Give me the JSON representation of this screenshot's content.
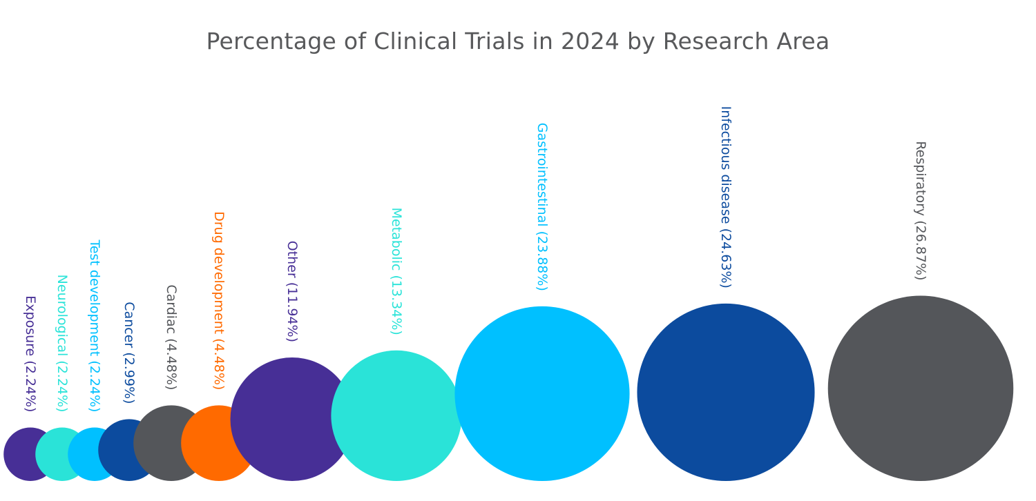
{
  "chart_data": {
    "type": "bubble",
    "title": "Percentage of Clinical Trials in 2024 by Research Area",
    "unit": "%",
    "categories": [
      {
        "name": "Exposure",
        "value": 2.24,
        "label": "Exposure (2.24%)",
        "color": "#472f96"
      },
      {
        "name": "Neurological",
        "value": 2.24,
        "label": "Neurological (2.24%)",
        "color": "#2ae3d8"
      },
      {
        "name": "Test development",
        "value": 2.24,
        "label": "Test development (2.24%)",
        "color": "#00c0ff"
      },
      {
        "name": "Cancer",
        "value": 2.99,
        "label": "Cancer (2.99%)",
        "color": "#0c4b9e"
      },
      {
        "name": "Cardiac",
        "value": 4.48,
        "label": "Cardiac (4.48%)",
        "color": "#54565a"
      },
      {
        "name": "Drug development",
        "value": 4.48,
        "label": "Drug development (4.48%)",
        "color": "#ff6a00"
      },
      {
        "name": "Other",
        "value": 11.94,
        "label": "Other (11.94%)",
        "color": "#472f96"
      },
      {
        "name": "Metabolic",
        "value": 13.34,
        "label": "Metabolic (13.34%)",
        "color": "#2ae3d8"
      },
      {
        "name": "Gastrointestinal",
        "value": 23.88,
        "label": "Gastrointestinal (23.88%)",
        "color": "#00c0ff"
      },
      {
        "name": "Infectious disease",
        "value": 24.63,
        "label": "Infectious disease (24.63%)",
        "color": "#0c4b9e"
      },
      {
        "name": "Respiratory",
        "value": 26.87,
        "label": "Respiratory (26.87%)",
        "color": "#54565a"
      }
    ]
  }
}
